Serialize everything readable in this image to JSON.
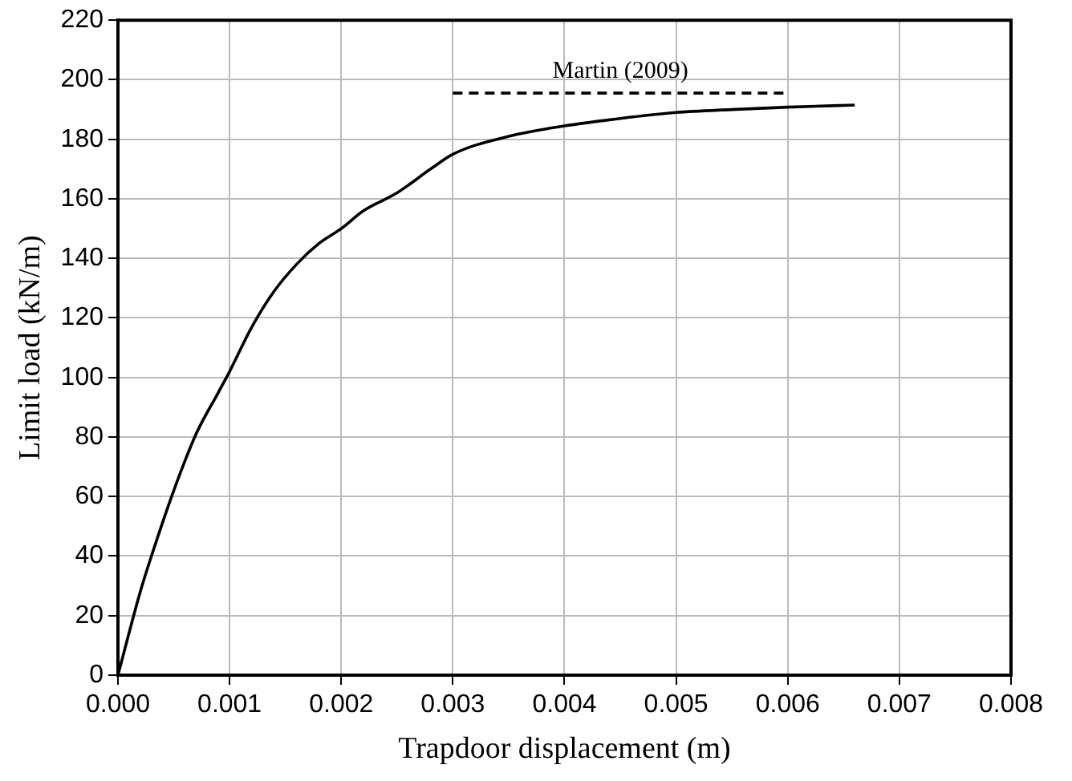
{
  "chart_data": {
    "type": "line",
    "xlabel": "Trapdoor displacement (m)",
    "ylabel": "Limit load (kN/m)",
    "xlim": [
      0,
      0.008
    ],
    "xticks": [
      {
        "value": 0,
        "label": "0.000"
      },
      {
        "value": 0.001,
        "label": "0.001"
      },
      {
        "value": 0.002,
        "label": "0.002"
      },
      {
        "value": 0.003,
        "label": "0.003"
      },
      {
        "value": 0.004,
        "label": "0.004"
      },
      {
        "value": 0.005,
        "label": "0.005"
      },
      {
        "value": 0.006,
        "label": "0.006"
      },
      {
        "value": 0.007,
        "label": "0.007"
      },
      {
        "value": 0.008,
        "label": "0.008"
      }
    ],
    "ylim": [
      0,
      220
    ],
    "yticks": [
      0,
      20,
      40,
      60,
      80,
      100,
      120,
      140,
      160,
      180,
      200,
      220
    ],
    "grid": true,
    "legend": false,
    "marker": "none",
    "series": [
      {
        "color": "#000000",
        "line_style": "solid",
        "x": [
          0,
          0.0002,
          0.0003,
          0.0005,
          0.0007,
          0.0009,
          0.001,
          0.0012,
          0.0014,
          0.0016,
          0.0018,
          0.002,
          0.0022,
          0.0025,
          0.0028,
          0.003,
          0.0035,
          0.004,
          0.0045,
          0.005,
          0.0055,
          0.006,
          0.0066
        ],
        "values": [
          0,
          28,
          40,
          62,
          81,
          95,
          102,
          117,
          129,
          138,
          145,
          150,
          156,
          162,
          170,
          175,
          181,
          184.5,
          187,
          189,
          190,
          190.8,
          191.5
        ]
      },
      {
        "name": "Martin (2009)",
        "color": "#000000",
        "line_style": "dashed",
        "x": [
          0.003,
          0.006
        ],
        "values": [
          195.5,
          195.5
        ]
      }
    ]
  }
}
